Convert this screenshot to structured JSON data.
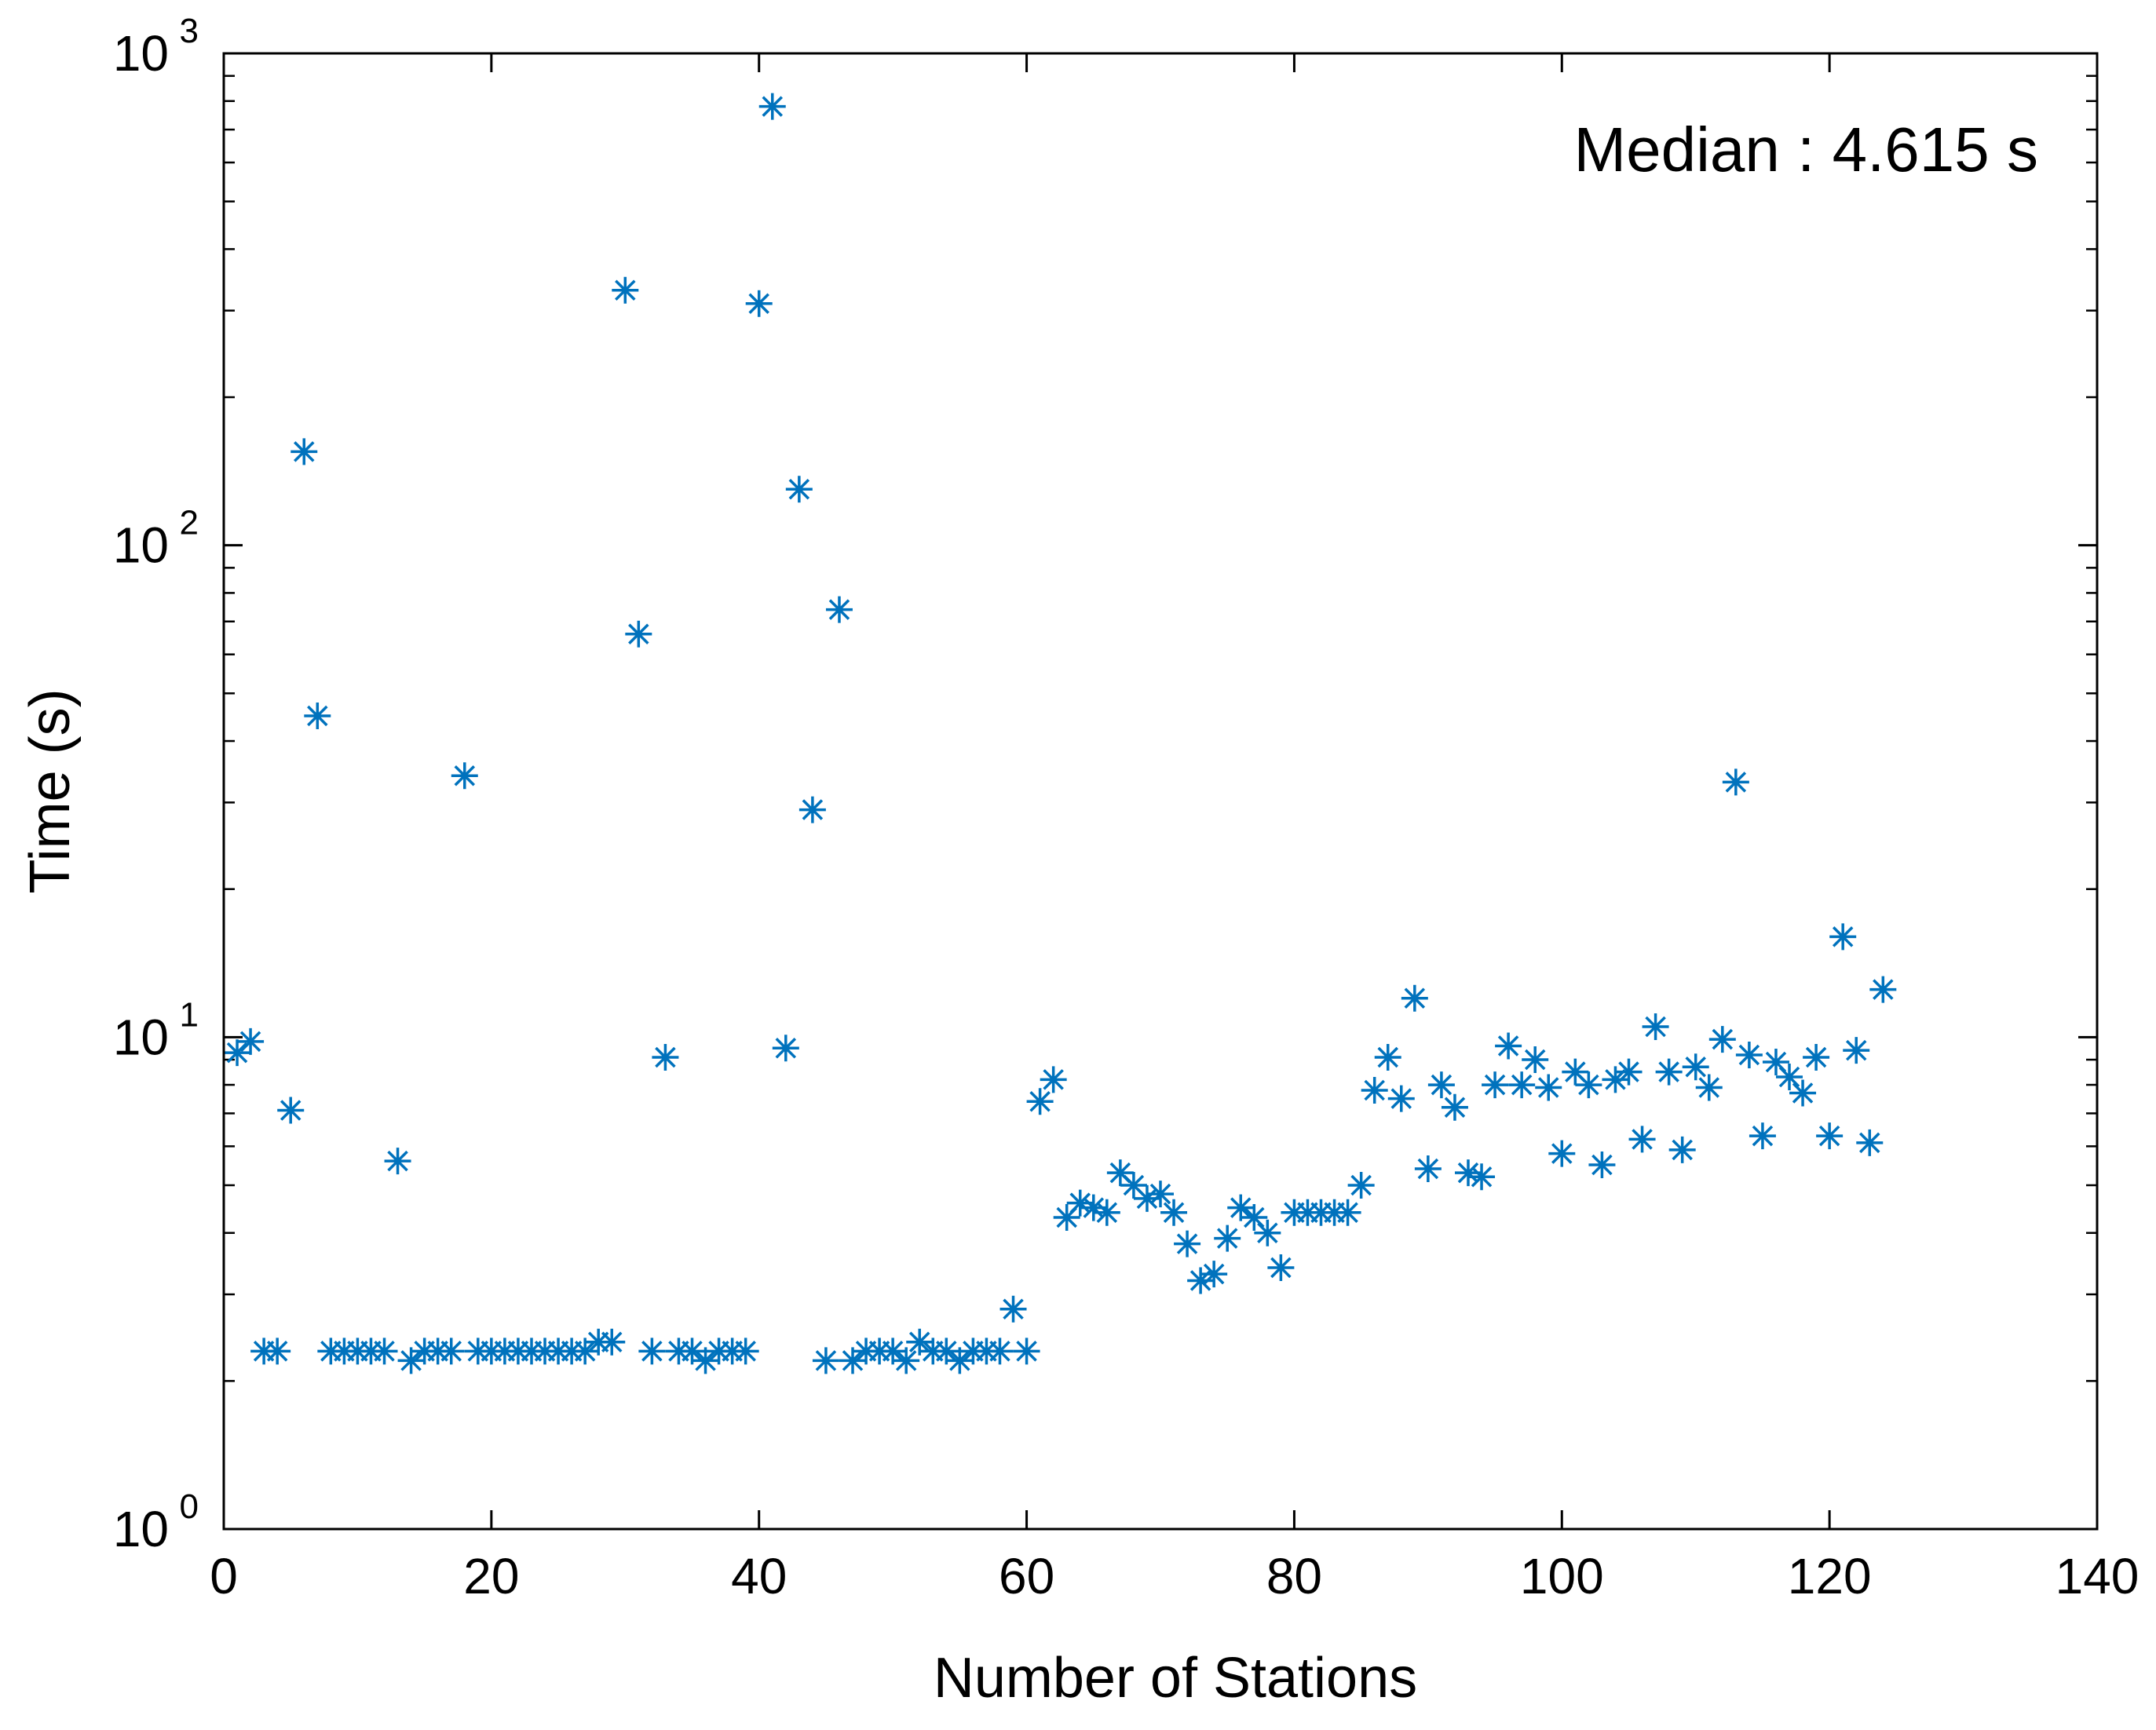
{
  "chart_data": {
    "type": "scatter",
    "xlabel": "Number of Stations",
    "ylabel": "Time (s)",
    "xlim": [
      0,
      140
    ],
    "ylim": [
      1,
      1000
    ],
    "yscale": "log",
    "grid": false,
    "legend": "none",
    "marker": "asterisk",
    "color": "#0072BD",
    "annotation": "Median : 4.615 s",
    "x_ticks": [
      "0",
      "20",
      "40",
      "60",
      "80",
      "100",
      "120",
      "140"
    ],
    "y_ticks": [
      {
        "base": "10",
        "exp": "0"
      },
      {
        "base": "10",
        "exp": "1"
      },
      {
        "base": "10",
        "exp": "2"
      },
      {
        "base": "10",
        "exp": "3"
      }
    ],
    "series": [
      {
        "points": [
          [
            1,
            9.3
          ],
          [
            2,
            9.8
          ],
          [
            3,
            2.3
          ],
          [
            4,
            2.3
          ],
          [
            5,
            7.1
          ],
          [
            6,
            155
          ],
          [
            7,
            45
          ],
          [
            8,
            2.3
          ],
          [
            9,
            2.3
          ],
          [
            10,
            2.3
          ],
          [
            11,
            2.3
          ],
          [
            12,
            2.3
          ],
          [
            13,
            5.6
          ],
          [
            14,
            2.2
          ],
          [
            15,
            2.3
          ],
          [
            16,
            2.3
          ],
          [
            17,
            2.3
          ],
          [
            18,
            34
          ],
          [
            19,
            2.3
          ],
          [
            20,
            2.3
          ],
          [
            21,
            2.3
          ],
          [
            22,
            2.3
          ],
          [
            23,
            2.3
          ],
          [
            24,
            2.3
          ],
          [
            25,
            2.3
          ],
          [
            26,
            2.3
          ],
          [
            27,
            2.3
          ],
          [
            28,
            2.4
          ],
          [
            29,
            2.4
          ],
          [
            30,
            330
          ],
          [
            31,
            66
          ],
          [
            32,
            2.3
          ],
          [
            33,
            9.1
          ],
          [
            34,
            2.3
          ],
          [
            35,
            2.3
          ],
          [
            36,
            2.2
          ],
          [
            37,
            2.3
          ],
          [
            38,
            2.3
          ],
          [
            39,
            2.3
          ],
          [
            40,
            310
          ],
          [
            41,
            780
          ],
          [
            42,
            9.5
          ],
          [
            43,
            130
          ],
          [
            44,
            29
          ],
          [
            45,
            2.2
          ],
          [
            46,
            74
          ],
          [
            47,
            2.2
          ],
          [
            48,
            2.3
          ],
          [
            49,
            2.3
          ],
          [
            50,
            2.3
          ],
          [
            51,
            2.2
          ],
          [
            52,
            2.4
          ],
          [
            53,
            2.3
          ],
          [
            54,
            2.3
          ],
          [
            55,
            2.2
          ],
          [
            56,
            2.3
          ],
          [
            57,
            2.3
          ],
          [
            58,
            2.3
          ],
          [
            59,
            2.8
          ],
          [
            60,
            2.3
          ],
          [
            61,
            7.4
          ],
          [
            62,
            8.2
          ],
          [
            63,
            4.3
          ],
          [
            64,
            4.6
          ],
          [
            65,
            4.5
          ],
          [
            66,
            4.4
          ],
          [
            67,
            5.3
          ],
          [
            68,
            5.0
          ],
          [
            69,
            4.7
          ],
          [
            70,
            4.8
          ],
          [
            71,
            4.4
          ],
          [
            72,
            3.8
          ],
          [
            73,
            3.2
          ],
          [
            74,
            3.3
          ],
          [
            75,
            3.9
          ],
          [
            76,
            4.5
          ],
          [
            77,
            4.3
          ],
          [
            78,
            4.0
          ],
          [
            79,
            3.4
          ],
          [
            80,
            4.4
          ],
          [
            81,
            4.4
          ],
          [
            82,
            4.4
          ],
          [
            83,
            4.4
          ],
          [
            84,
            4.4
          ],
          [
            85,
            5.0
          ],
          [
            86,
            7.8
          ],
          [
            87,
            9.1
          ],
          [
            88,
            7.5
          ],
          [
            89,
            12
          ],
          [
            90,
            5.4
          ],
          [
            91,
            8.0
          ],
          [
            92,
            7.2
          ],
          [
            93,
            5.3
          ],
          [
            94,
            5.2
          ],
          [
            95,
            8.0
          ],
          [
            96,
            9.6
          ],
          [
            97,
            8.0
          ],
          [
            98,
            9.0
          ],
          [
            99,
            7.9
          ],
          [
            100,
            5.8
          ],
          [
            101,
            8.5
          ],
          [
            102,
            8.0
          ],
          [
            103,
            5.5
          ],
          [
            104,
            8.2
          ],
          [
            105,
            8.5
          ],
          [
            106,
            6.2
          ],
          [
            107,
            10.5
          ],
          [
            108,
            8.5
          ],
          [
            109,
            5.9
          ],
          [
            110,
            8.7
          ],
          [
            111,
            7.9
          ],
          [
            112,
            9.9
          ],
          [
            113,
            33
          ],
          [
            114,
            9.2
          ],
          [
            115,
            6.3
          ],
          [
            116,
            8.9
          ],
          [
            117,
            8.3
          ],
          [
            118,
            7.7
          ],
          [
            119,
            9.1
          ],
          [
            120,
            6.3
          ],
          [
            121,
            16
          ],
          [
            122,
            9.4
          ],
          [
            123,
            6.1
          ],
          [
            124,
            12.5
          ]
        ]
      }
    ]
  }
}
